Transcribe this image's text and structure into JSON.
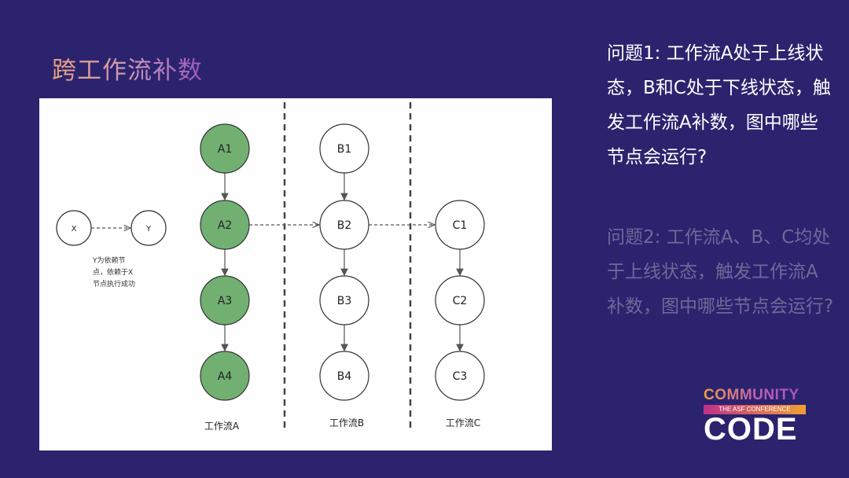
{
  "slide": {
    "title": "跨工作流补数"
  },
  "diagram": {
    "legend": {
      "x_label": "X",
      "y_label": "Y",
      "note_lines": [
        "Y为依赖节",
        "点，依赖于X",
        "节点执行成功"
      ]
    },
    "workflows": [
      {
        "label": "工作流A",
        "nodes": [
          "A1",
          "A2",
          "A3",
          "A4"
        ]
      },
      {
        "label": "工作流B",
        "nodes": [
          "B1",
          "B2",
          "B3",
          "B4"
        ]
      },
      {
        "label": "工作流C",
        "nodes": [
          "C1",
          "C2",
          "C3"
        ]
      }
    ],
    "highlighted_nodes": [
      "A1",
      "A2",
      "A3",
      "A4"
    ],
    "highlight_color": "#72b072",
    "dependencies": [
      [
        "A2",
        "B2"
      ],
      [
        "B2",
        "C1"
      ]
    ]
  },
  "questions": [
    {
      "text": "问题1: 工作流A处于上线状态，B和C处于下线状态，触发工作流A补数，图中哪些节点会运行?",
      "color": "#ffffff"
    },
    {
      "text": "问题2: 工作流A、B、C均处于上线状态，触发工作流A补数，图中哪些节点会运行?",
      "color": "#6d6a99"
    }
  ],
  "logo": {
    "line1": "COMMUNITY",
    "line2": "THE ASF CONFERENCE",
    "line3": "CODE"
  }
}
